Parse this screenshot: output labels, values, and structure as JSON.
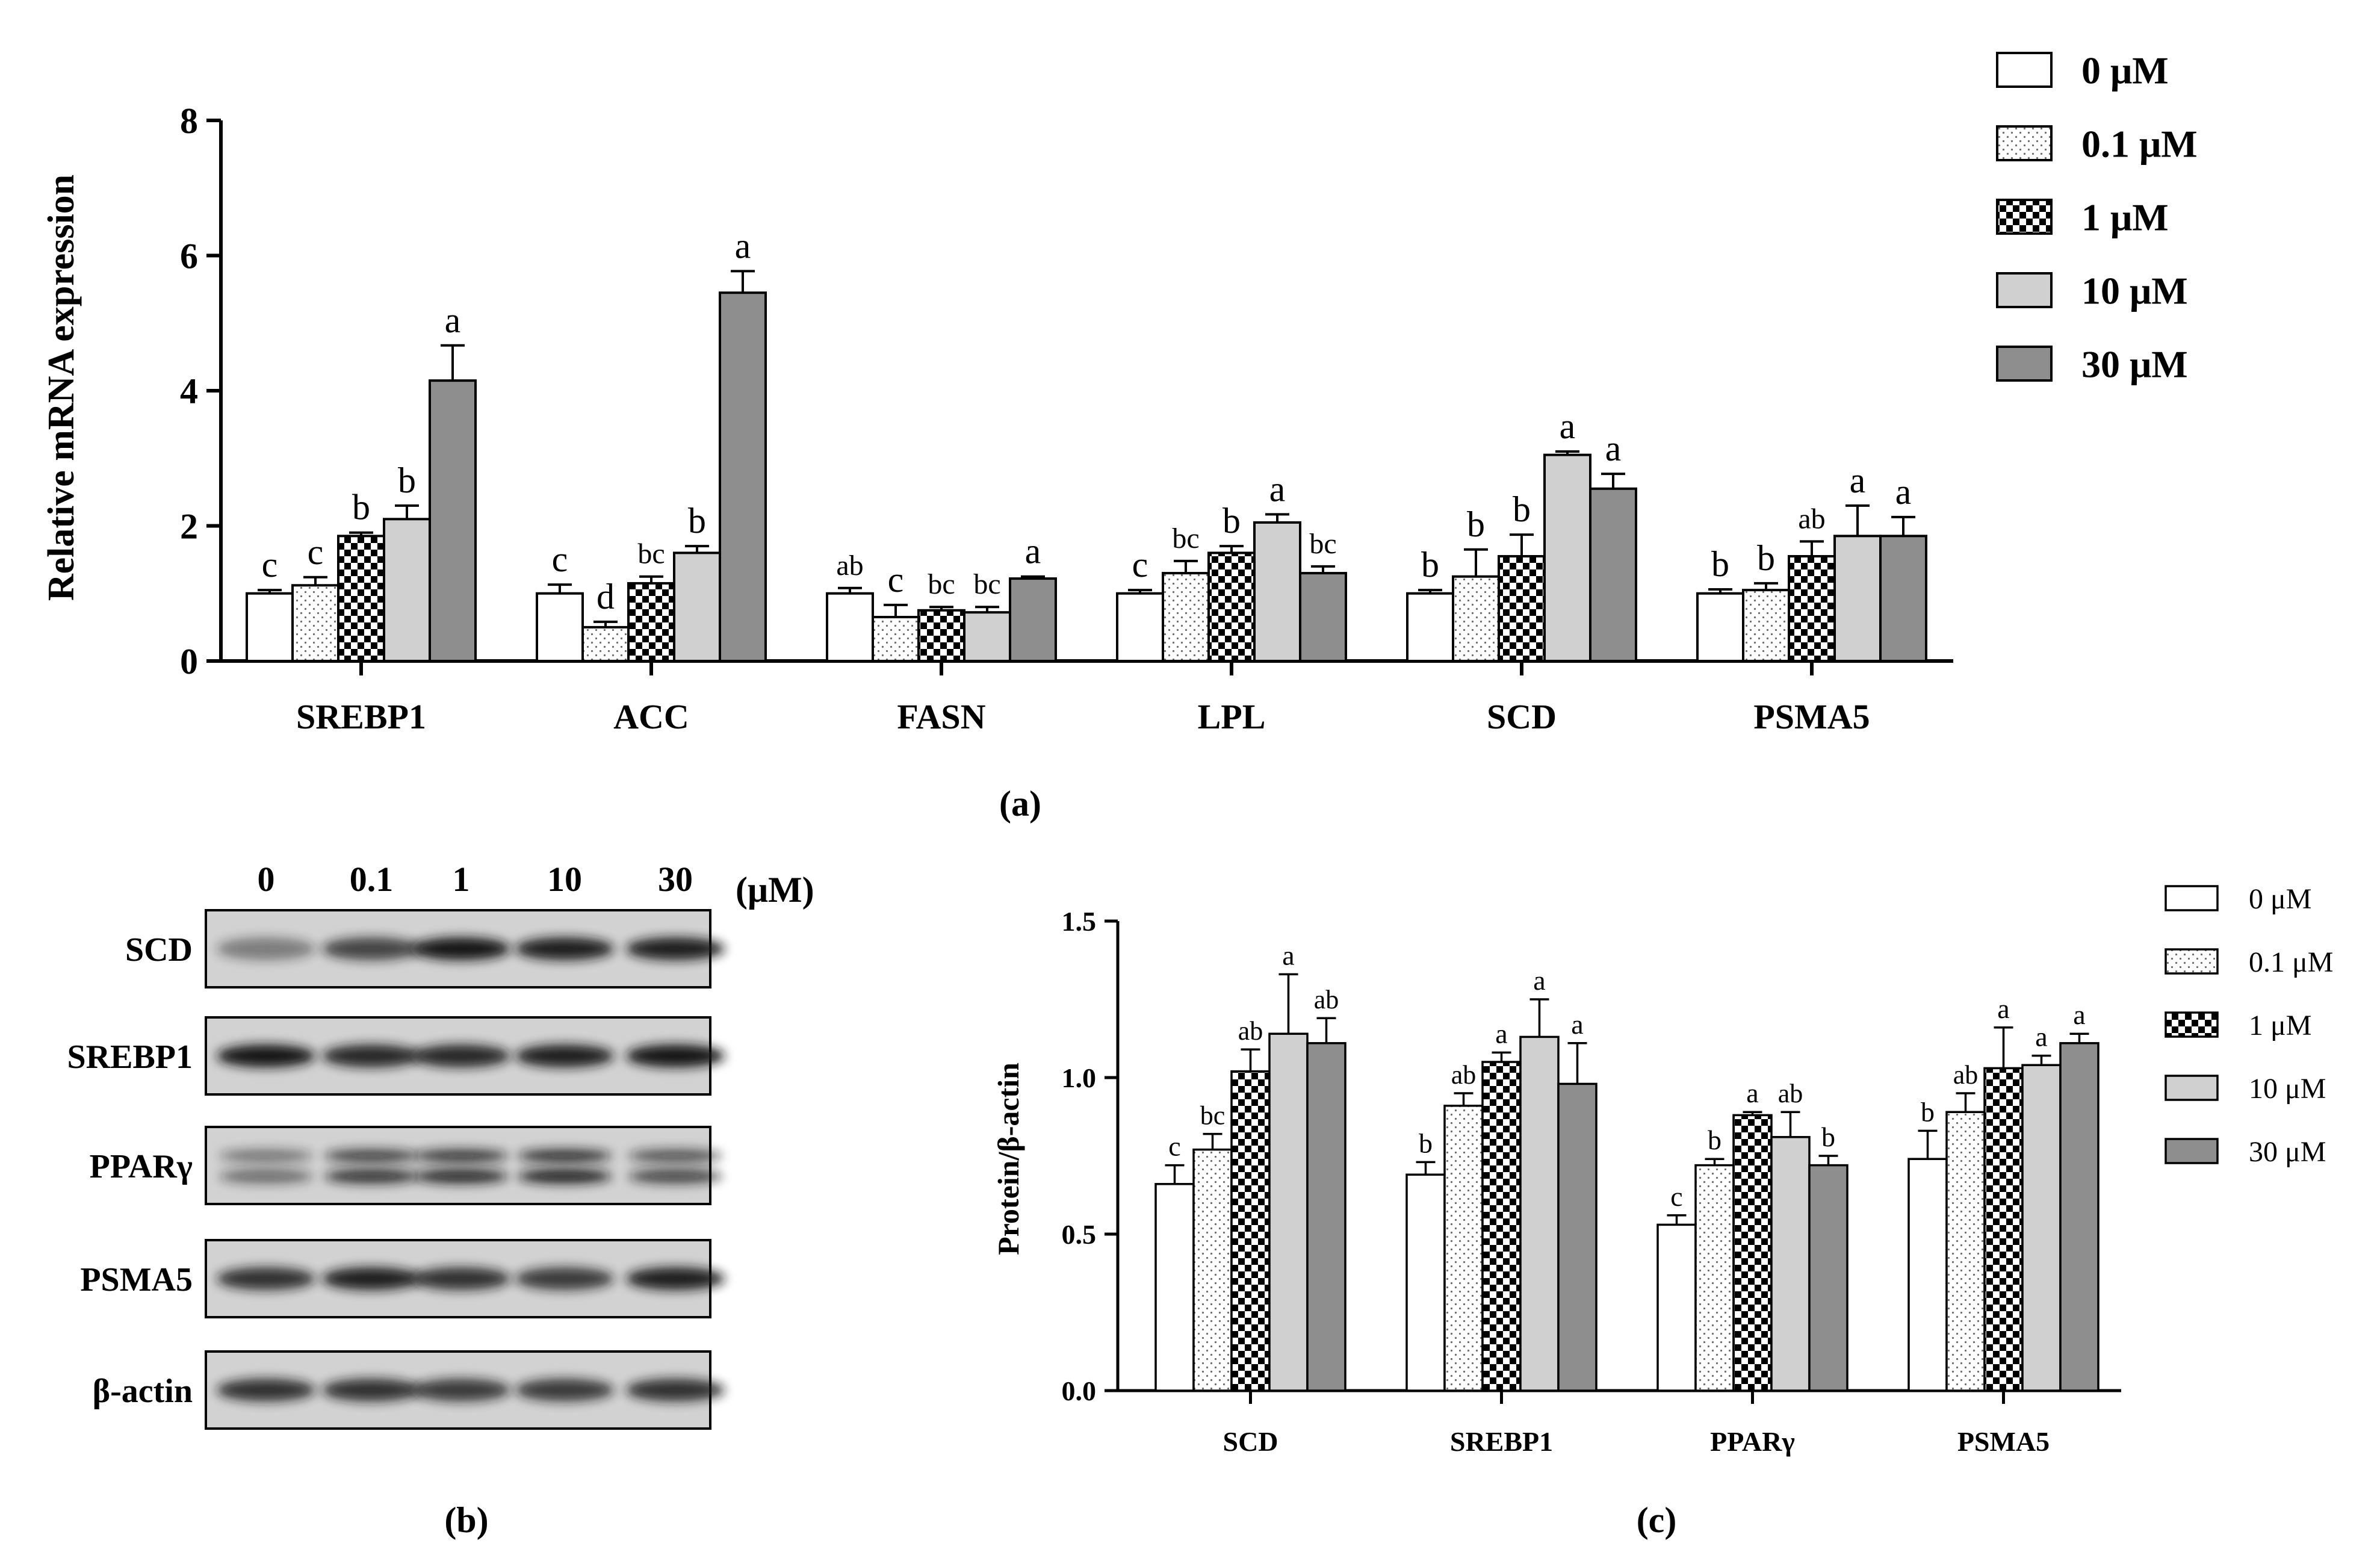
{
  "chart_data": [
    {
      "id": "a",
      "type": "bar",
      "panel_label": "(a)",
      "title": "",
      "ylabel": "Relative mRNA expression",
      "xlabel": "",
      "ylim": [
        0,
        8
      ],
      "yticks": [
        "0",
        "2",
        "4",
        "6",
        "8"
      ],
      "categories": [
        "SREBP1",
        "ACC",
        "FASN",
        "LPL",
        "SCD",
        "PSMA5"
      ],
      "series": [
        {
          "name": "0 μM",
          "values": [
            1.0,
            1.0,
            1.0,
            1.0,
            1.0,
            1.0
          ],
          "errors": [
            0.05,
            0.13,
            0.08,
            0.05,
            0.05,
            0.06
          ],
          "letters": [
            "c",
            "c",
            "ab",
            "c",
            "b",
            "b"
          ]
        },
        {
          "name": "0.1 μM",
          "values": [
            1.12,
            0.5,
            0.65,
            1.3,
            1.25,
            1.05
          ],
          "errors": [
            0.12,
            0.08,
            0.18,
            0.18,
            0.4,
            0.1
          ],
          "letters": [
            "c",
            "d",
            "c",
            "bc",
            "b",
            "b"
          ]
        },
        {
          "name": "1 μM",
          "values": [
            1.85,
            1.15,
            0.75,
            1.6,
            1.55,
            1.55
          ],
          "errors": [
            0.05,
            0.1,
            0.05,
            0.1,
            0.32,
            0.22
          ],
          "letters": [
            "b",
            "bc",
            "bc",
            "b",
            "b",
            "ab"
          ]
        },
        {
          "name": "10 μM",
          "values": [
            2.1,
            1.6,
            0.72,
            2.05,
            3.05,
            1.85
          ],
          "errors": [
            0.2,
            0.1,
            0.08,
            0.12,
            0.05,
            0.45
          ],
          "letters": [
            "b",
            "b",
            "bc",
            "a",
            "a",
            "a"
          ]
        },
        {
          "name": "30 μM",
          "values": [
            4.15,
            5.45,
            1.22,
            1.3,
            2.55,
            1.85
          ],
          "errors": [
            0.52,
            0.32,
            0.03,
            0.1,
            0.22,
            0.28
          ],
          "letters": [
            "a",
            "a",
            "a",
            "bc",
            "a",
            "a"
          ]
        }
      ],
      "legend": "top-right"
    },
    {
      "id": "c",
      "type": "bar",
      "panel_label": "(c)",
      "title": "",
      "ylabel": "Protein/β-actin",
      "xlabel": "",
      "ylim": [
        0,
        1.5
      ],
      "yticks": [
        "0.0",
        "0.5",
        "1.0",
        "1.5"
      ],
      "categories": [
        "SCD",
        "SREBP1",
        "PPARγ",
        "PSMA5"
      ],
      "series": [
        {
          "name": "0 μM",
          "values": [
            0.66,
            0.69,
            0.53,
            0.74
          ],
          "errors": [
            0.06,
            0.04,
            0.03,
            0.09
          ],
          "letters": [
            "c",
            "b",
            "c",
            "b"
          ]
        },
        {
          "name": "0.1 μM",
          "values": [
            0.77,
            0.91,
            0.72,
            0.89
          ],
          "errors": [
            0.05,
            0.04,
            0.02,
            0.06
          ],
          "letters": [
            "bc",
            "ab",
            "b",
            "ab"
          ]
        },
        {
          "name": "1 μM",
          "values": [
            1.02,
            1.05,
            0.88,
            1.03
          ],
          "errors": [
            0.07,
            0.03,
            0.01,
            0.13
          ],
          "letters": [
            "ab",
            "a",
            "a",
            "a"
          ]
        },
        {
          "name": "10 μM",
          "values": [
            1.14,
            1.13,
            0.81,
            1.04
          ],
          "errors": [
            0.19,
            0.12,
            0.08,
            0.03
          ],
          "letters": [
            "a",
            "a",
            "ab",
            "a"
          ]
        },
        {
          "name": "30 μM",
          "values": [
            1.11,
            0.98,
            0.72,
            1.11
          ],
          "errors": [
            0.08,
            0.13,
            0.03,
            0.03
          ],
          "letters": [
            "ab",
            "a",
            "b",
            "a"
          ]
        }
      ],
      "legend": "top-right"
    }
  ],
  "blot": {
    "panel_label": "(b)",
    "unit": "(μM)",
    "concentrations": [
      "0",
      "0.1",
      "1",
      "10",
      "30"
    ],
    "proteins": [
      {
        "name": "SCD",
        "intensity": [
          0.45,
          0.75,
          1.0,
          0.95,
          0.95
        ]
      },
      {
        "name": "SREBP1",
        "intensity": [
          1.0,
          0.9,
          0.9,
          0.95,
          1.0
        ]
      },
      {
        "name": "PPARγ",
        "intensity": [
          0.55,
          0.85,
          0.9,
          0.95,
          0.75
        ]
      },
      {
        "name": "PSMA5",
        "intensity": [
          0.85,
          0.95,
          0.85,
          0.8,
          0.95
        ]
      },
      {
        "name": "β-actin",
        "intensity": [
          0.85,
          0.85,
          0.8,
          0.8,
          0.85
        ]
      }
    ]
  },
  "colors": {
    "series_fill": [
      "#ffffff",
      "#ffffff",
      "#000000",
      "#d0d0d0",
      "#8e8e8e"
    ],
    "axis": "#000000",
    "blot_bg": "#d2d2d2",
    "band": "#141414"
  }
}
